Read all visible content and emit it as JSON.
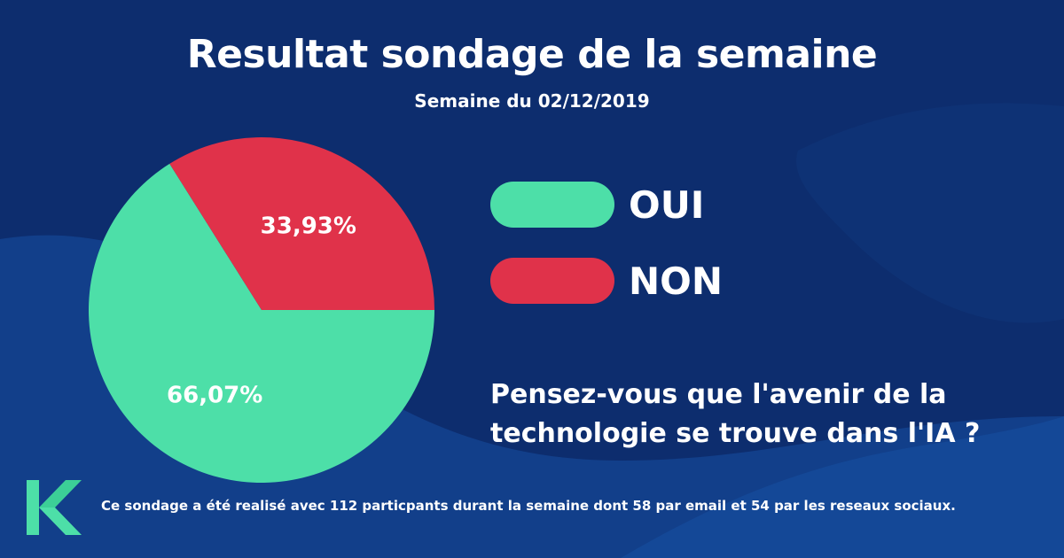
{
  "colors": {
    "background": "#0d2d6e",
    "wave_light": "#15489a",
    "wave_mid": "#113d88",
    "oui": "#4ddfa8",
    "non": "#e0324a",
    "logo": "#4ddfa8"
  },
  "header": {
    "title": "Resultat sondage de la semaine",
    "subtitle": "Semaine du 02/12/2019"
  },
  "chart_data": {
    "type": "pie",
    "title": "Resultat sondage de la semaine",
    "subtitle": "Semaine du 02/12/2019",
    "slices": [
      {
        "name": "OUI",
        "value": 66.07,
        "label": "66,07%",
        "color": "#4ddfa8"
      },
      {
        "name": "NON",
        "value": 33.93,
        "label": "33,93%",
        "color": "#e0324a"
      }
    ],
    "legend": [
      {
        "label": "OUI",
        "color": "#4ddfa8"
      },
      {
        "label": "NON",
        "color": "#e0324a"
      }
    ],
    "legend_placement": "right"
  },
  "question": {
    "line1": "Pensez-vous que l'avenir de la",
    "line2": "technologie se trouve dans l'IA ?"
  },
  "footnote": "Ce sondage a été realisé avec 112 particpants durant la semaine dont 58 par email et 54 par les reseaux sociaux.",
  "logo": {
    "icon": "k-logo-icon"
  }
}
